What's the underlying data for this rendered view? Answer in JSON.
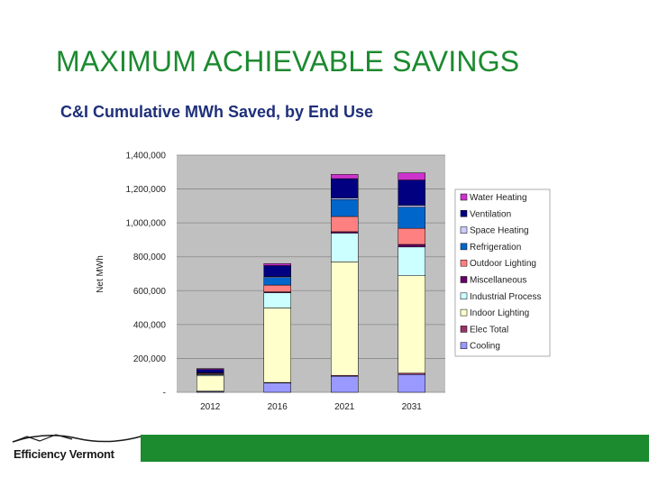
{
  "slide": {
    "title": "MAXIMUM ACHIEVABLE SAVINGS",
    "subtitle": "C&I Cumulative MWh Saved, by End Use"
  },
  "logo": {
    "text": "Efficiency Vermont"
  },
  "colors": {
    "brand_green": "#1c8a2f",
    "subtitle_navy": "#1f2f7a",
    "plot_background": "#c0c0c0"
  },
  "chart_data": {
    "type": "bar",
    "stacked": true,
    "ylabel": "Net MWh",
    "xlabel": "",
    "ylim": [
      0,
      1400000
    ],
    "yticks": [
      0,
      200000,
      400000,
      600000,
      800000,
      1000000,
      1200000,
      1400000
    ],
    "ytick_labels": [
      "-",
      "200,000",
      "400,000",
      "600,000",
      "800,000",
      "1,000,000",
      "1,200,000",
      "1,400,000"
    ],
    "grid": true,
    "legend_position": "right",
    "categories": [
      "2012",
      "2016",
      "2021",
      "2031"
    ],
    "series": [
      {
        "name": "Cooling",
        "color": "#9999ff",
        "values": [
          5000,
          55000,
          95000,
          105000
        ]
      },
      {
        "name": "Elec Total",
        "color": "#993366",
        "values": [
          2000,
          3000,
          5000,
          8000
        ]
      },
      {
        "name": "Indoor Lighting",
        "color": "#ffffcc",
        "values": [
          90000,
          440000,
          670000,
          575000
        ]
      },
      {
        "name": "Industrial Process",
        "color": "#ccffff",
        "values": [
          7000,
          90000,
          170000,
          170000
        ]
      },
      {
        "name": "Miscellaneous",
        "color": "#660066",
        "values": [
          2000,
          5000,
          8000,
          15000
        ]
      },
      {
        "name": "Outdoor Lighting",
        "color": "#ff8080",
        "values": [
          5000,
          40000,
          90000,
          95000
        ]
      },
      {
        "name": "Refrigeration",
        "color": "#0066cc",
        "values": [
          3000,
          45000,
          100000,
          125000
        ]
      },
      {
        "name": "Space Heating",
        "color": "#ccccff",
        "values": [
          1000,
          5000,
          8000,
          10000
        ]
      },
      {
        "name": "Ventilation",
        "color": "#000080",
        "values": [
          20000,
          65000,
          115000,
          150000
        ]
      },
      {
        "name": "Water Heating",
        "color": "#cc33cc",
        "values": [
          5000,
          12000,
          25000,
          42000
        ]
      }
    ]
  }
}
